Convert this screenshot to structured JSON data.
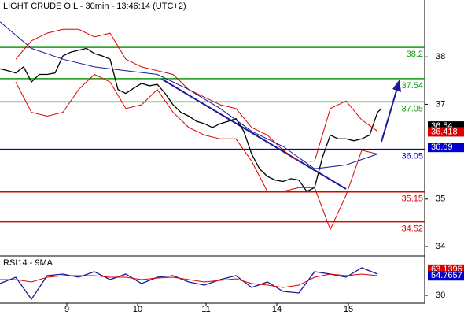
{
  "chart_data": [
    {
      "type": "line",
      "title": "LIGHT CRUDE OIL - 30min - 13:46:14 (UTC+2)",
      "xlim": [
        0,
        108
      ],
      "ylim": [
        33.8,
        39.2
      ],
      "yticks": [
        34,
        35,
        37,
        38
      ],
      "series": [
        {
          "color": "#000000",
          "x": [
            0,
            2,
            4,
            6,
            8,
            10,
            12,
            14,
            16,
            18,
            20,
            22,
            24,
            26,
            28,
            30,
            32,
            34,
            36,
            38,
            40,
            42,
            44,
            46,
            48,
            50,
            52,
            54,
            56,
            58,
            60,
            62,
            64,
            66,
            68,
            70,
            72,
            74,
            76,
            78,
            80,
            82,
            84,
            86,
            88,
            90,
            92,
            94,
            96,
            97
          ],
          "values": [
            37.75,
            37.71,
            37.66,
            37.79,
            37.47,
            37.63,
            37.63,
            37.66,
            38.02,
            38.1,
            38.14,
            38.18,
            38.07,
            38.02,
            37.95,
            37.31,
            37.23,
            37.34,
            37.44,
            37.39,
            37.42,
            37.23,
            36.99,
            36.83,
            36.75,
            36.64,
            36.59,
            36.51,
            36.59,
            36.64,
            36.7,
            36.43,
            35.95,
            35.64,
            35.48,
            35.4,
            35.37,
            35.43,
            35.4,
            35.16,
            35.24,
            35.88,
            36.35,
            36.27,
            36.27,
            36.23,
            36.27,
            36.35,
            36.83,
            36.91
          ]
        },
        {
          "color": "#dd0000",
          "x": [
            4,
            8,
            12,
            16,
            20,
            24,
            28,
            32,
            36,
            40,
            44,
            48,
            52,
            56,
            60,
            64,
            68,
            72,
            76,
            80,
            84,
            88,
            92,
            96
          ],
          "values": [
            37.95,
            38.34,
            38.5,
            38.58,
            38.58,
            38.42,
            38.5,
            37.95,
            37.79,
            37.71,
            37.63,
            37.31,
            37.15,
            36.99,
            36.91,
            36.51,
            36.35,
            36.03,
            35.8,
            35.8,
            36.91,
            37.07,
            36.67,
            36.43
          ]
        },
        {
          "color": "#dd0000",
          "x": [
            4,
            8,
            12,
            16,
            20,
            24,
            28,
            32,
            36,
            40,
            44,
            48,
            52,
            56,
            60,
            64,
            68,
            72,
            76,
            80,
            84,
            88,
            92,
            96
          ],
          "values": [
            37.47,
            36.83,
            36.75,
            36.83,
            37.31,
            37.63,
            37.47,
            36.91,
            36.99,
            37.31,
            36.83,
            36.51,
            36.35,
            36.27,
            36.27,
            35.8,
            35.16,
            35.16,
            35.24,
            35.24,
            34.36,
            35.08,
            36.03,
            35.95
          ]
        },
        {
          "color": "#1a1a9a",
          "x": [
            0,
            8,
            16,
            24,
            32,
            40,
            48,
            56,
            64,
            72,
            80,
            88,
            96
          ],
          "values": [
            38.74,
            38.18,
            37.95,
            37.79,
            37.71,
            37.63,
            37.31,
            36.91,
            36.43,
            36.11,
            35.64,
            35.72,
            35.95
          ]
        }
      ],
      "levels": [
        {
          "value": 38.2,
          "color": "#119911"
        },
        {
          "value": 37.54,
          "color": "#119911"
        },
        {
          "value": 37.05,
          "color": "#119911"
        },
        {
          "value": 36.05,
          "color": "#0000cc"
        },
        {
          "value": 35.15,
          "color": "#dd0000"
        },
        {
          "value": 34.52,
          "color": "#dd0000"
        }
      ],
      "tags": [
        {
          "value": 36.54,
          "color": "#000000"
        },
        {
          "value": 36.418,
          "color": "#dd0000"
        },
        {
          "value": 36.09,
          "color": "#0000cc"
        }
      ]
    },
    {
      "type": "line",
      "title": "RSI14 - 9MA",
      "xlim": [
        0,
        108
      ],
      "ylim": [
        20,
        80
      ],
      "yticks": [
        30
      ],
      "xticks": [
        {
          "value": 17,
          "label": "9"
        },
        {
          "value": 35,
          "label": "10"
        },
        {
          "value": 52.4,
          "label": "11"
        },
        {
          "value": 70.4,
          "label": "14"
        },
        {
          "value": 88.6,
          "label": "15"
        }
      ],
      "series": [
        {
          "color": "#1a1a9a",
          "x": [
            0,
            4,
            8,
            12,
            16,
            20,
            24,
            28,
            32,
            36,
            40,
            44,
            48,
            52,
            56,
            60,
            64,
            68,
            72,
            76,
            80,
            84,
            88,
            92,
            96
          ],
          "values": [
            45,
            53,
            25,
            55,
            57,
            53,
            60,
            50,
            57,
            45,
            53,
            55,
            47,
            43,
            50,
            55,
            40,
            47,
            35,
            33,
            60,
            57,
            53,
            65,
            57
          ]
        },
        {
          "color": "#dd0000",
          "x": [
            0,
            4,
            8,
            12,
            16,
            20,
            24,
            28,
            32,
            36,
            40,
            44,
            48,
            52,
            56,
            60,
            64,
            68,
            72,
            76,
            80,
            84,
            88,
            92,
            96
          ],
          "values": [
            50,
            50,
            47,
            53,
            55,
            55,
            55,
            53,
            53,
            50,
            52,
            53,
            50,
            47,
            49,
            51,
            45,
            43,
            40,
            43,
            53,
            57,
            55,
            57,
            55
          ]
        }
      ],
      "tags": [
        {
          "value": 63.1396,
          "color": "#dd0000"
        },
        {
          "value": 54.7657,
          "color": "#0000cc"
        }
      ]
    }
  ]
}
